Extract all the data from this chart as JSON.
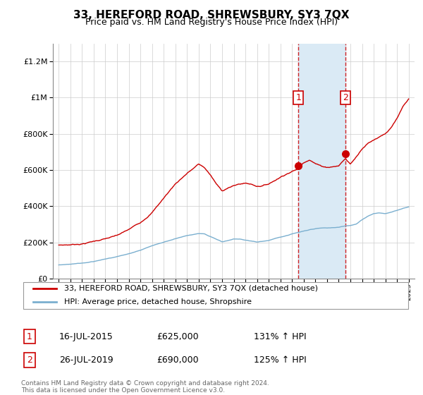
{
  "title": "33, HEREFORD ROAD, SHREWSBURY, SY3 7QX",
  "subtitle": "Price paid vs. HM Land Registry's House Price Index (HPI)",
  "sale1_date": "16-JUL-2015",
  "sale1_price": 625000,
  "sale1_label": "1",
  "sale1_pct": "131% ↑ HPI",
  "sale2_date": "26-JUL-2019",
  "sale2_price": 690000,
  "sale2_label": "2",
  "sale2_pct": "125% ↑ HPI",
  "legend_line1": "33, HEREFORD ROAD, SHREWSBURY, SY3 7QX (detached house)",
  "legend_line2": "HPI: Average price, detached house, Shropshire",
  "footer": "Contains HM Land Registry data © Crown copyright and database right 2024.\nThis data is licensed under the Open Government Licence v3.0.",
  "property_color": "#cc0000",
  "hpi_color": "#7aafcf",
  "shade_color": "#daeaf5",
  "sale1_year": 2015.54,
  "sale2_year": 2019.56,
  "prop_anchors_x": [
    1995,
    1996,
    1997,
    1998,
    1999,
    2000,
    2001,
    2002,
    2003,
    2004,
    2005,
    2006,
    2007,
    2007.5,
    2008,
    2008.5,
    2009,
    2009.5,
    2010,
    2010.5,
    2011,
    2011.5,
    2012,
    2012.5,
    2013,
    2013.5,
    2014,
    2014.5,
    2015.0,
    2015.54,
    2016.0,
    2016.5,
    2017.0,
    2017.5,
    2018.0,
    2018.5,
    2019.0,
    2019.56,
    2020.0,
    2020.5,
    2021.0,
    2021.5,
    2022.0,
    2022.5,
    2023.0,
    2023.5,
    2024.0,
    2024.5,
    2025.0
  ],
  "prop_anchors_y": [
    185000,
    188000,
    195000,
    210000,
    225000,
    240000,
    270000,
    310000,
    370000,
    450000,
    530000,
    590000,
    640000,
    620000,
    580000,
    530000,
    490000,
    510000,
    520000,
    530000,
    535000,
    530000,
    520000,
    525000,
    535000,
    555000,
    575000,
    595000,
    610000,
    625000,
    660000,
    680000,
    660000,
    645000,
    640000,
    645000,
    650000,
    690000,
    660000,
    700000,
    750000,
    780000,
    800000,
    820000,
    840000,
    870000,
    920000,
    980000,
    1020000
  ],
  "hpi_anchors_x": [
    1995,
    1996,
    1997,
    1998,
    1999,
    2000,
    2001,
    2002,
    2003,
    2004,
    2005,
    2006,
    2007,
    2007.5,
    2008,
    2008.5,
    2009,
    2009.5,
    2010,
    2010.5,
    2011,
    2011.5,
    2012,
    2012.5,
    2013,
    2013.5,
    2014,
    2014.5,
    2015,
    2015.5,
    2016,
    2016.5,
    2017,
    2017.5,
    2018,
    2018.5,
    2019,
    2019.5,
    2020,
    2020.5,
    2021,
    2021.5,
    2022,
    2022.5,
    2023,
    2023.5,
    2024,
    2024.5,
    2025
  ],
  "hpi_anchors_y": [
    75000,
    80000,
    88000,
    98000,
    110000,
    125000,
    140000,
    160000,
    185000,
    205000,
    225000,
    240000,
    250000,
    245000,
    230000,
    215000,
    200000,
    205000,
    215000,
    215000,
    210000,
    205000,
    200000,
    205000,
    210000,
    220000,
    228000,
    238000,
    248000,
    255000,
    262000,
    270000,
    275000,
    278000,
    278000,
    280000,
    283000,
    290000,
    292000,
    300000,
    325000,
    345000,
    358000,
    362000,
    360000,
    368000,
    378000,
    388000,
    395000
  ]
}
